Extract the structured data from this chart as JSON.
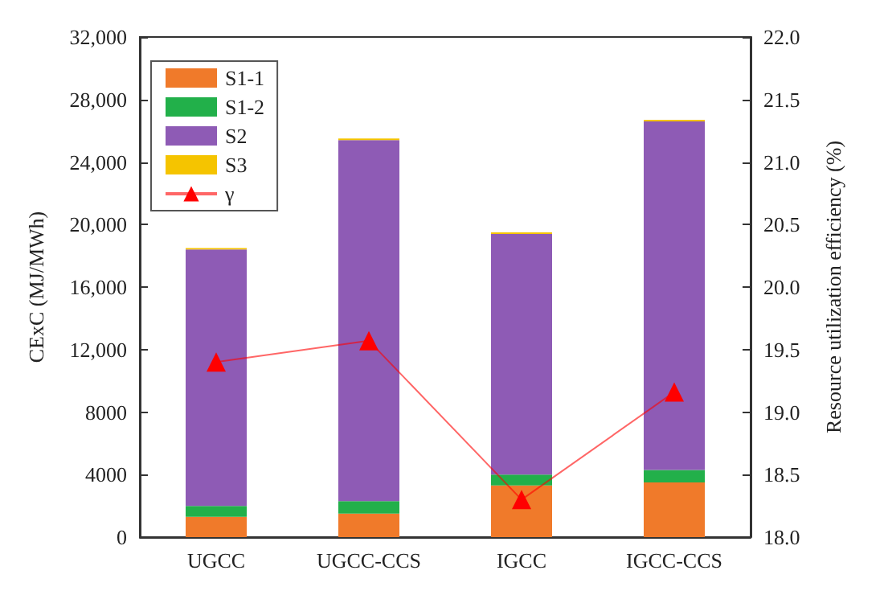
{
  "chart_data": {
    "type": "bar",
    "stacked": true,
    "categories": [
      "UGCC",
      "UGCC-CCS",
      "IGCC",
      "IGCC-CCS"
    ],
    "ylabel": "CExC (MJ/MWh)",
    "y2label": "Resource utilization efficiency (%)",
    "series": [
      {
        "name": "S1-1",
        "color": "#f07a2a",
        "values": [
          1300,
          1500,
          3300,
          3500
        ]
      },
      {
        "name": "S1-2",
        "color": "#22b04a",
        "values": [
          700,
          800,
          700,
          800
        ]
      },
      {
        "name": "S2",
        "color": "#8e5bb5",
        "values": [
          16400,
          23100,
          15400,
          22300
        ]
      },
      {
        "name": "S3",
        "color": "#f5c400",
        "values": [
          100,
          100,
          100,
          100
        ]
      },
      {
        "name": "γ",
        "type": "line",
        "axis": "y2",
        "color": "#ff0000",
        "marker": "triangle",
        "values": [
          19.4,
          19.57,
          18.3,
          19.16
        ]
      }
    ],
    "ylim": [
      0,
      32000
    ],
    "yticks": [
      0,
      4000,
      8000,
      {
        "value": 12000,
        "label": "12,000"
      },
      {
        "value": 16000,
        "label": "16,000"
      },
      {
        "value": 20000,
        "label": "20,000"
      },
      {
        "value": 24000,
        "label": "24,000"
      },
      {
        "value": 28000,
        "label": "28,000"
      },
      {
        "value": 32000,
        "label": "32,000"
      }
    ],
    "y2lim": [
      18,
      22
    ],
    "y2ticks": [
      {
        "value": 18,
        "label": "18.0"
      },
      18.5,
      {
        "value": 19,
        "label": "19.0"
      },
      19.5,
      {
        "value": 20,
        "label": "20.0"
      },
      20.5,
      {
        "value": 21,
        "label": "21.0"
      },
      21.5,
      {
        "value": 22,
        "label": "22.0"
      }
    ],
    "legend": "top left",
    "grid": false
  }
}
